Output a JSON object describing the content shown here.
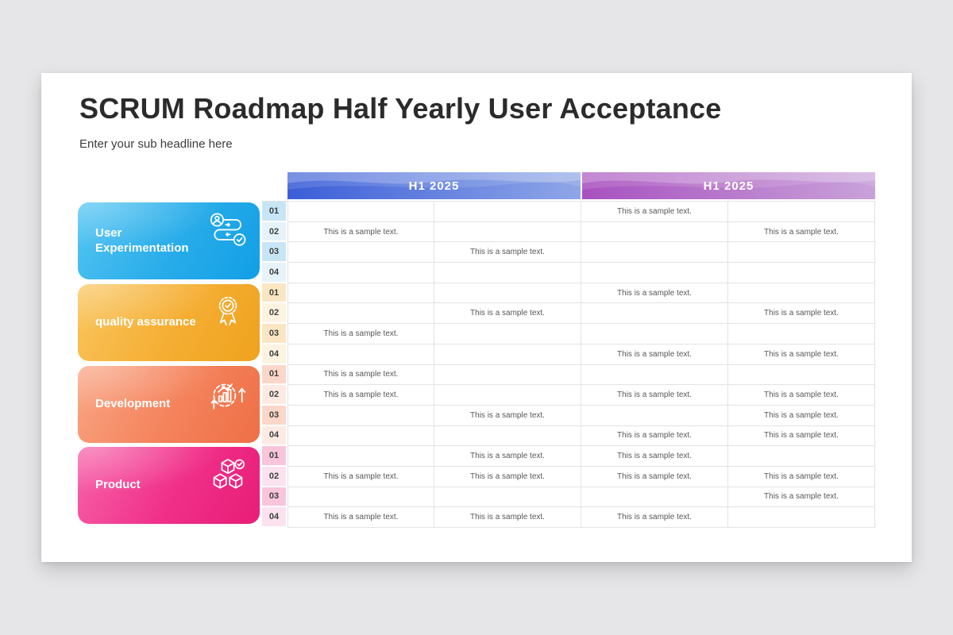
{
  "slide": {
    "title": "SCRUM Roadmap Half Yearly User Acceptance",
    "subtitle": "Enter your sub headline here"
  },
  "table": {
    "sample_text": "This is a sample text.",
    "period_headers": [
      {
        "label": "H1 2025",
        "gradient_from": "#3b5ed8",
        "gradient_to": "#8fa6e7"
      },
      {
        "label": "H1 2025",
        "gradient_from": "#a851bf",
        "gradient_to": "#c9a2da"
      }
    ]
  },
  "groups": [
    {
      "label": "User Experimentation",
      "icon": "process-flow-icon",
      "gradient_from": "#53c4f2",
      "gradient_mid": "#28ace9",
      "gradient_to": "#129fe6",
      "num_tint_odd": "#c8e5f6",
      "num_tint_even": "#e6f3fb",
      "rows": [
        {
          "num": "01",
          "cells": [
            "",
            "",
            "This is a sample text.",
            ""
          ]
        },
        {
          "num": "02",
          "cells": [
            "This is a sample text.",
            "",
            "",
            "This is a sample text."
          ]
        },
        {
          "num": "03",
          "cells": [
            "",
            "This is a sample text.",
            "",
            ""
          ]
        },
        {
          "num": "04",
          "cells": [
            "",
            "",
            "",
            ""
          ]
        }
      ]
    },
    {
      "label": "quality assurance",
      "icon": "award-icon",
      "gradient_from": "#f9c55e",
      "gradient_mid": "#f5ae33",
      "gradient_to": "#efa21d",
      "num_tint_odd": "#fae6c2",
      "num_tint_even": "#fcf4e1",
      "rows": [
        {
          "num": "01",
          "cells": [
            "",
            "",
            "This is a sample text.",
            ""
          ]
        },
        {
          "num": "02",
          "cells": [
            "",
            "This is a sample text.",
            "",
            "This is a sample text."
          ]
        },
        {
          "num": "03",
          "cells": [
            "This is a sample text.",
            "",
            "",
            ""
          ]
        },
        {
          "num": "04",
          "cells": [
            "",
            "",
            "This is a sample text.",
            "This is a sample text."
          ]
        }
      ]
    },
    {
      "label": "Development",
      "icon": "growth-gear-icon",
      "gradient_from": "#f9a584",
      "gradient_mid": "#f4825b",
      "gradient_to": "#ee6f46",
      "num_tint_odd": "#fad7c9",
      "num_tint_even": "#fdebe3",
      "rows": [
        {
          "num": "01",
          "cells": [
            "This is a sample text.",
            "",
            "",
            ""
          ]
        },
        {
          "num": "02",
          "cells": [
            "This is a sample text.",
            "",
            "This is a sample text.",
            "This is a sample text."
          ]
        },
        {
          "num": "03",
          "cells": [
            "",
            "This is a sample text.",
            "",
            "This is a sample text."
          ]
        },
        {
          "num": "04",
          "cells": [
            "",
            "",
            "This is a sample text.",
            "This is a sample text."
          ]
        }
      ]
    },
    {
      "label": "Product",
      "icon": "cubes-icon",
      "gradient_from": "#f763aa",
      "gradient_mid": "#f02f89",
      "gradient_to": "#e81d77",
      "num_tint_odd": "#f8c5da",
      "num_tint_even": "#fbe2ee",
      "rows": [
        {
          "num": "01",
          "cells": [
            "",
            "This is a sample text.",
            "This is a sample text.",
            ""
          ]
        },
        {
          "num": "02",
          "cells": [
            "This is a sample text.",
            "This is a sample text.",
            "This is a sample text.",
            "This is a sample text."
          ]
        },
        {
          "num": "03",
          "cells": [
            "",
            "",
            "",
            "This is a sample text."
          ]
        },
        {
          "num": "04",
          "cells": [
            "This is a sample text.",
            "This is a sample text.",
            "This is a sample text.",
            ""
          ]
        }
      ]
    }
  ]
}
